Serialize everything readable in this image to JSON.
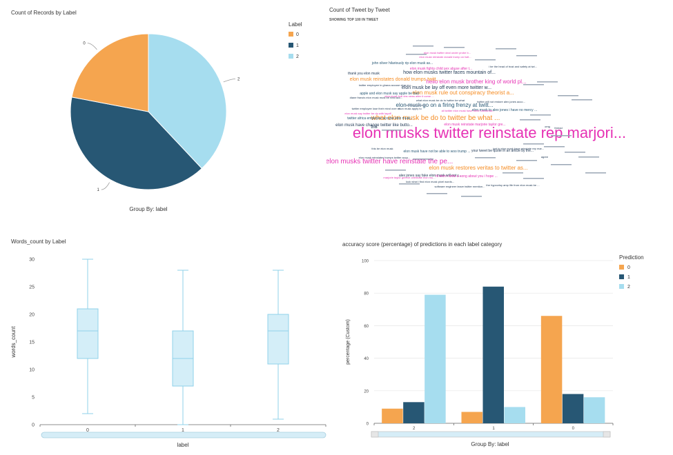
{
  "colors": {
    "c0": "#f5a54f",
    "c1": "#275774",
    "c2": "#a6ddef",
    "axis": "#555555",
    "grid": "#e4e4e4",
    "pink": "#e632b4",
    "orange": "#f58a1f",
    "navy": "#223a56"
  },
  "charts": {
    "pie": {
      "title": "Count of Records by Label",
      "footer": "Group By: label",
      "legend_title": "Label",
      "legend_labels": [
        "0",
        "1",
        "2"
      ],
      "slice_labels": [
        "0",
        "1",
        "2"
      ]
    },
    "wordcloud": {
      "title": "Count of Tweet by Tweet",
      "subtitle": "SHOWING TOP 100 IN TWEET"
    },
    "box": {
      "title": "Words_count by Label",
      "xlabel": "label",
      "ylabel": "words_count",
      "yticks": [
        "0",
        "5",
        "10",
        "15",
        "20",
        "25",
        "30"
      ],
      "xticks": [
        "0",
        "1",
        "2"
      ]
    },
    "bars": {
      "title": "accuracy score (percentage) of predictions in each label category",
      "xlabel": "Group By: label",
      "ylabel": "percentage (Custom)",
      "legend_title": "Prediction",
      "legend_labels": [
        "0",
        "1",
        "2"
      ],
      "yticks": [
        "0",
        "20",
        "40",
        "60",
        "80",
        "100"
      ],
      "xticks": [
        "2",
        "1",
        "0"
      ]
    }
  },
  "chart_data": [
    {
      "type": "pie",
      "title": "Count of Records by Label",
      "categories": [
        "0",
        "1",
        "2"
      ],
      "values": [
        22,
        40,
        38
      ],
      "legend": "top-right"
    },
    {
      "type": "wordcloud",
      "title": "Count of Tweet by Tweet",
      "words": [
        {
          "text": "elon musks twitter reinstate rep marjori...",
          "size": 22,
          "color": "#e632b4"
        },
        {
          "text": "what elon musk be do to twitter be what ...",
          "size": 10,
          "color": "#f58a1f"
        },
        {
          "text": "elon musks twitter have reinstate the pe...",
          "size": 10,
          "color": "#e632b4"
        },
        {
          "text": "hello elon musk brother king of world pl...",
          "size": 8,
          "color": "#e632b4"
        },
        {
          "text": "elon musk rule out conspiracy theorist a...",
          "size": 8,
          "color": "#f58a1f"
        },
        {
          "text": "elon musk restores veritas to twitter as...",
          "size": 8,
          "color": "#f58a1f"
        },
        {
          "text": "elon musk reinstates donald trumps twitt...",
          "size": 7,
          "color": "#f58a1f"
        },
        {
          "text": "elon musk go on a firing frenzy at twitt...",
          "size": 8,
          "color": "#275774"
        },
        {
          "text": "how elon musks twitter faces mountain of...",
          "size": 7,
          "color": "#223a56"
        },
        {
          "text": "elon musk be lay off even more twitter w...",
          "size": 7,
          "color": "#223a56"
        },
        {
          "text": "elon musk have change twitter like butto...",
          "size": 6,
          "color": "#223a56"
        },
        {
          "text": "john oliver hilariously rip elon musk as...",
          "size": 5,
          "color": "#275774"
        },
        {
          "text": "thank you elon musk",
          "size": 5,
          "color": "#223a56"
        },
        {
          "text": "apple and elon musk say apple be bad",
          "size": 5,
          "color": "#275774"
        },
        {
          "text": "elon musk fights child sex abuse after t...",
          "size": 5,
          "color": "#e632b4"
        },
        {
          "text": "elon musk reinstate marjorie taylor gre...",
          "size": 5,
          "color": "#e632b4"
        },
        {
          "text": "twitter africa employee accuse elon musk...",
          "size": 5,
          "color": "#275774"
        },
        {
          "text": "elon musk have not be able to woo trump ...",
          "size": 5,
          "color": "#275774"
        },
        {
          "text": "your tweet be quote in an article by the...",
          "size": 5,
          "color": "#223a56"
        },
        {
          "text": "alex jones say fake elon musk will not r...",
          "size": 5,
          "color": "#223a56"
        },
        {
          "text": "hi elon i write a song about you i hope ...",
          "size": 5,
          "color": "#e632b4"
        },
        {
          "text": "elon musk to alex jones i have no mercy ...",
          "size": 5,
          "color": "#275774"
        },
        {
          "text": "this",
          "size": 6,
          "color": "#223a56"
        },
        {
          "text": "software engineer leave twitter mention...",
          "size": 4,
          "color": "#223a56"
        },
        {
          "text": "marjorie taylor greene celebrate elon mu...",
          "size": 4,
          "color": "#e632b4"
        },
        {
          "text": "this be elon musk",
          "size": 4,
          "color": "#223a56"
        },
        {
          "text": "elon musk troll cbs news after it come ...",
          "size": 4,
          "color": "#e632b4"
        },
        {
          "text": "twitter will not restore alex jones acco...",
          "size": 4,
          "color": "#223a56"
        },
        {
          "text": "i be the head of trust and safety at twi...",
          "size": 4,
          "color": "#223a56"
        },
        {
          "text": "twitter employee in ghana accuse elon mu...",
          "size": 4,
          "color": "#223a56"
        },
        {
          "text": "elon musk apply to",
          "size": 4,
          "color": "#223a56"
        },
        {
          "text": "all twitter elon musk have three checkmar...",
          "size": 4,
          "color": "#e632b4"
        },
        {
          "text": "elon musk say twitter be do with layoff",
          "size": 4,
          "color": "#e632b4"
        },
        {
          "text": "elon musk twitter deal under probe b...",
          "size": 4,
          "color": "#e632b4"
        },
        {
          "text": "elon musk reinstate donald trump on twit...",
          "size": 4,
          "color": "#e632b4"
        },
        {
          "text": "what elon musk be do to twitter be what",
          "size": 4,
          "color": "#223a56"
        },
        {
          "text": "the hypocrisy amp life from elon musk be ...",
          "size": 4,
          "color": "#223a56"
        },
        {
          "text": "look what i find elon musk pixel words...",
          "size": 4,
          "color": "#223a56"
        },
        {
          "text": "diane francis elon musk must be held acc...",
          "size": 4,
          "color": "#223a56"
        },
        {
          "text": "twitter employee lose their mind over el...",
          "size": 4,
          "color": "#223a56"
        },
        {
          "text": "elon musk reinstates trumps twitter acco...",
          "size": 4,
          "color": "#223a56"
        },
        {
          "text": "just in elon musk have reinstate rep mar...",
          "size": 4,
          "color": "#223a56"
        },
        {
          "text": "agree",
          "size": 4,
          "color": "#223a56"
        },
        {
          "text": "thread",
          "size": 4,
          "color": "#223a56"
        },
        {
          "text": "omg",
          "size": 4,
          "color": "#223a56"
        }
      ]
    },
    {
      "type": "box",
      "title": "Words_count by Label",
      "xlabel": "label",
      "ylabel": "words_count",
      "ylim": [
        0,
        30
      ],
      "categories": [
        "0",
        "1",
        "2"
      ],
      "boxes": [
        {
          "min": 2,
          "q1": 12,
          "median": 17,
          "q3": 21,
          "max": 30
        },
        {
          "min": 0,
          "q1": 7,
          "median": 12,
          "q3": 17,
          "max": 28
        },
        {
          "min": 1,
          "q1": 11,
          "median": 17,
          "q3": 20,
          "max": 28
        }
      ]
    },
    {
      "type": "bar",
      "title": "accuracy score (percentage) of predictions in each label category",
      "xlabel": "Group By: label",
      "ylabel": "percentage (Custom)",
      "ylim": [
        0,
        100
      ],
      "legend": "top-right",
      "categories": [
        "2",
        "1",
        "0"
      ],
      "series": [
        {
          "name": "0",
          "values": [
            9,
            7,
            66
          ]
        },
        {
          "name": "1",
          "values": [
            13,
            84,
            18
          ]
        },
        {
          "name": "2",
          "values": [
            79,
            10,
            16
          ]
        }
      ]
    }
  ]
}
